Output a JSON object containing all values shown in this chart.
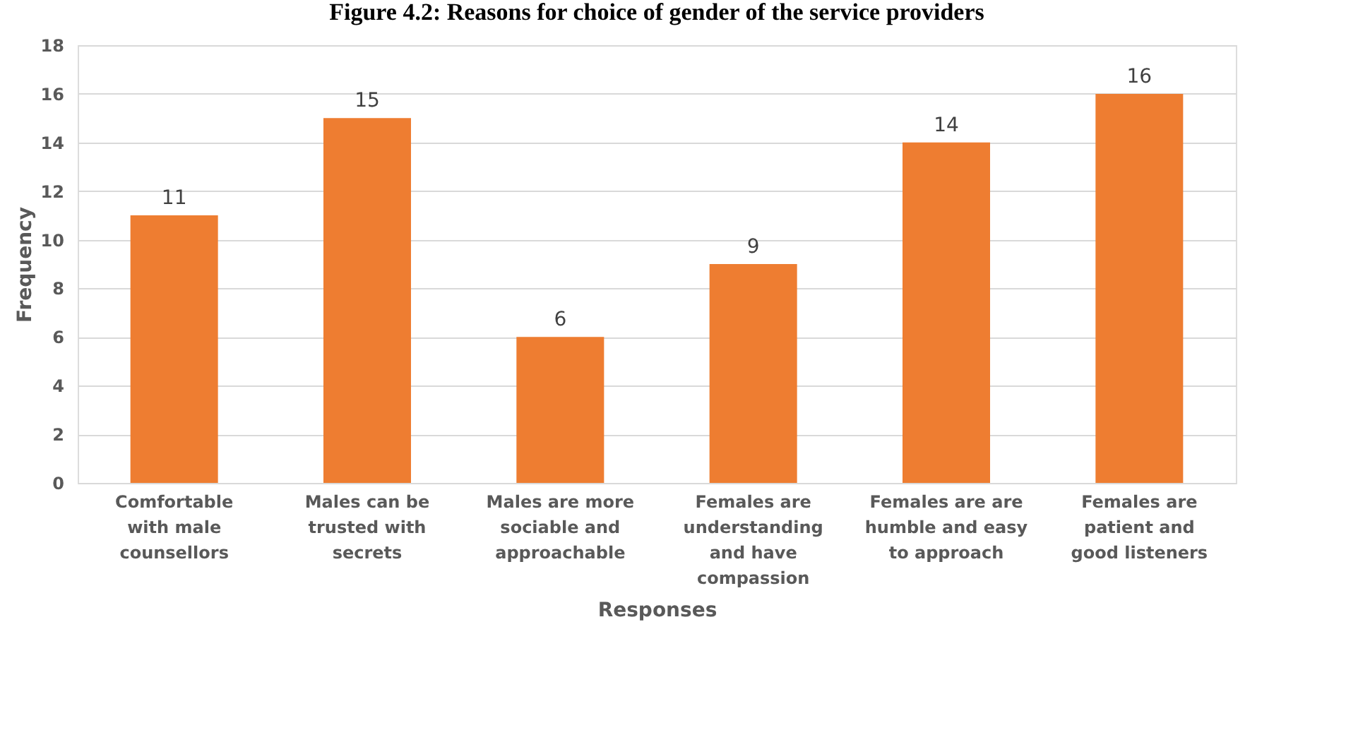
{
  "chart_data": {
    "type": "bar",
    "title": "Figure 4.2: Reasons for choice of gender of the service providers",
    "xlabel": "Responses",
    "ylabel": "Frequency",
    "categories": [
      "Comfortable with male counsellors",
      "Males can be trusted with secrets",
      "Males are more sociable and approachable",
      "Females are understanding and have compassion",
      "Females are are humble and easy to approach",
      "Females are patient and good listeners"
    ],
    "values": [
      11,
      15,
      6,
      9,
      14,
      16
    ],
    "color": "#ee7d31",
    "ylim": [
      0,
      18
    ],
    "yticks": [
      0,
      2,
      4,
      6,
      8,
      10,
      12,
      14,
      16,
      18
    ],
    "grid": "y",
    "data_labels": true
  }
}
